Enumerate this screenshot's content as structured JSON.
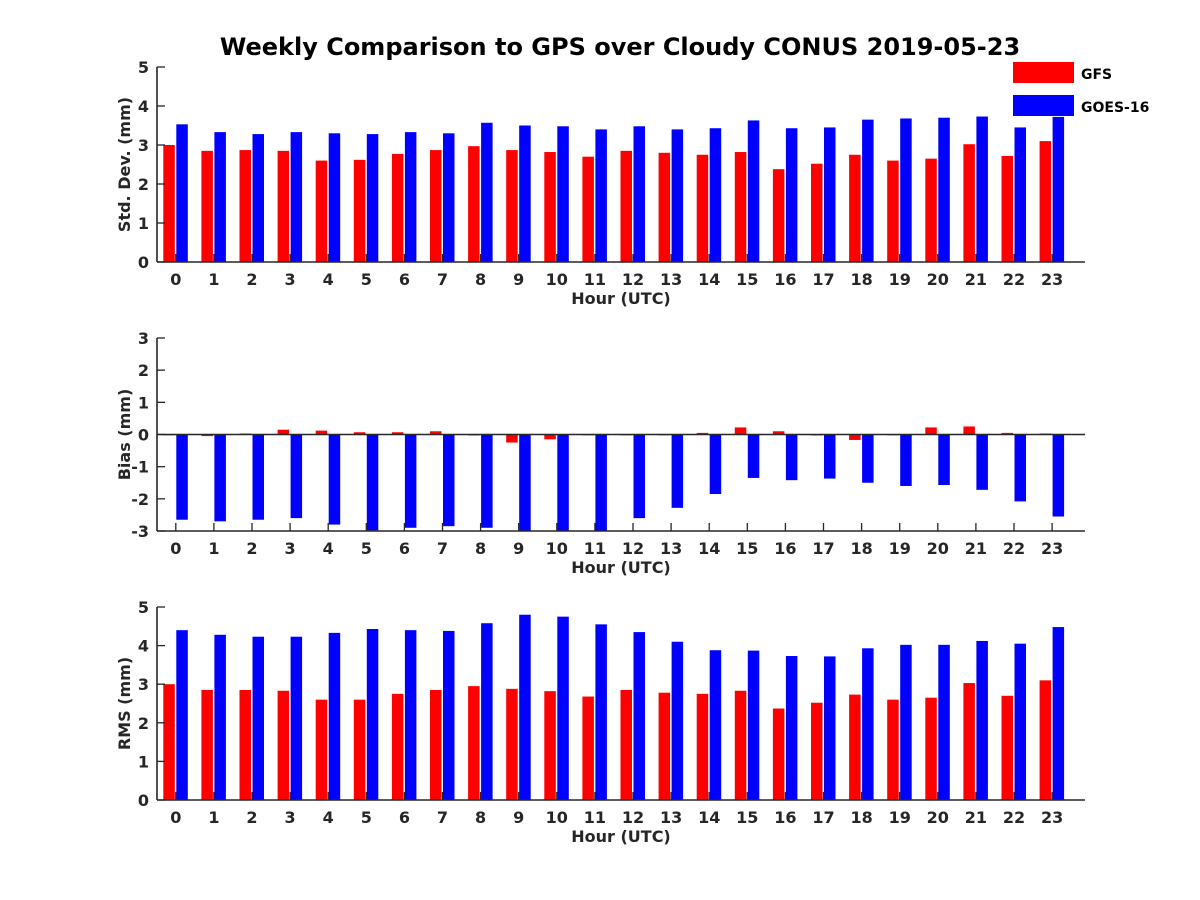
{
  "chart_data": {
    "title": "Weekly Comparison to GPS over Cloudy CONUS 2019-05-23",
    "type": "bar",
    "legend": {
      "placement": "top-right",
      "entries": [
        {
          "name": "GFS",
          "color": "#ff0000"
        },
        {
          "name": "GOES-16",
          "color": "#0000ff"
        }
      ]
    },
    "subplots": [
      {
        "type": "bar",
        "ylabel": "Std. Dev. (mm)",
        "xlabel": "Hour (UTC)",
        "ylim": [
          0,
          5
        ],
        "yticks": [
          0,
          1,
          2,
          3,
          4,
          5
        ],
        "categories": [
          "0",
          "1",
          "2",
          "3",
          "4",
          "5",
          "6",
          "7",
          "8",
          "9",
          "10",
          "11",
          "12",
          "13",
          "14",
          "15",
          "16",
          "17",
          "18",
          "19",
          "20",
          "21",
          "22",
          "23"
        ],
        "series": [
          {
            "name": "GFS",
            "color": "#ff0000",
            "values": [
              3.0,
              2.85,
              2.87,
              2.85,
              2.6,
              2.62,
              2.77,
              2.87,
              2.97,
              2.87,
              2.82,
              2.7,
              2.85,
              2.8,
              2.75,
              2.82,
              2.38,
              2.52,
              2.75,
              2.6,
              2.65,
              3.02,
              2.72,
              3.1
            ]
          },
          {
            "name": "GOES-16",
            "color": "#0000ff",
            "values": [
              3.53,
              3.33,
              3.28,
              3.33,
              3.3,
              3.28,
              3.33,
              3.3,
              3.57,
              3.5,
              3.48,
              3.4,
              3.48,
              3.4,
              3.43,
              3.63,
              3.43,
              3.45,
              3.65,
              3.68,
              3.7,
              3.73,
              3.45,
              3.72
            ]
          }
        ]
      },
      {
        "type": "bar",
        "ylabel": "Bias (mm)",
        "xlabel": "Hour (UTC)",
        "ylim": [
          -3,
          3
        ],
        "yticks": [
          -3,
          -2,
          -1,
          0,
          1,
          2,
          3
        ],
        "categories": [
          "0",
          "1",
          "2",
          "3",
          "4",
          "5",
          "6",
          "7",
          "8",
          "9",
          "10",
          "11",
          "12",
          "13",
          "14",
          "15",
          "16",
          "17",
          "18",
          "19",
          "20",
          "21",
          "22",
          "23"
        ],
        "series": [
          {
            "name": "GFS",
            "color": "#ff0000",
            "values": [
              0.0,
              -0.05,
              0.03,
              0.15,
              0.12,
              0.07,
              0.07,
              0.1,
              -0.03,
              -0.25,
              -0.15,
              0.0,
              0.0,
              0.0,
              0.05,
              0.22,
              0.1,
              -0.03,
              -0.17,
              0.0,
              0.22,
              0.25,
              0.05,
              0.03
            ]
          },
          {
            "name": "GOES-16",
            "color": "#0000ff",
            "values": [
              -2.65,
              -2.7,
              -2.65,
              -2.6,
              -2.8,
              -2.98,
              -2.9,
              -2.85,
              -2.9,
              -3.0,
              -3.0,
              -3.0,
              -2.6,
              -2.28,
              -1.85,
              -1.35,
              -1.42,
              -1.37,
              -1.5,
              -1.6,
              -1.57,
              -1.72,
              -2.08,
              -2.55
            ]
          }
        ]
      },
      {
        "type": "bar",
        "ylabel": "RMS (mm)",
        "xlabel": "Hour (UTC)",
        "ylim": [
          0,
          5
        ],
        "yticks": [
          0,
          1,
          2,
          3,
          4,
          5
        ],
        "categories": [
          "0",
          "1",
          "2",
          "3",
          "4",
          "5",
          "6",
          "7",
          "8",
          "9",
          "10",
          "11",
          "12",
          "13",
          "14",
          "15",
          "16",
          "17",
          "18",
          "19",
          "20",
          "21",
          "22",
          "23"
        ],
        "series": [
          {
            "name": "GFS",
            "color": "#ff0000",
            "values": [
              3.0,
              2.85,
              2.85,
              2.83,
              2.6,
              2.6,
              2.75,
              2.85,
              2.95,
              2.88,
              2.82,
              2.68,
              2.85,
              2.78,
              2.75,
              2.83,
              2.37,
              2.52,
              2.73,
              2.6,
              2.65,
              3.03,
              2.7,
              3.1
            ]
          },
          {
            "name": "GOES-16",
            "color": "#0000ff",
            "values": [
              4.4,
              4.28,
              4.23,
              4.23,
              4.33,
              4.43,
              4.4,
              4.38,
              4.58,
              4.8,
              4.75,
              4.55,
              4.35,
              4.1,
              3.88,
              3.87,
              3.73,
              3.72,
              3.93,
              4.02,
              4.02,
              4.12,
              4.05,
              4.48
            ]
          }
        ]
      }
    ]
  }
}
